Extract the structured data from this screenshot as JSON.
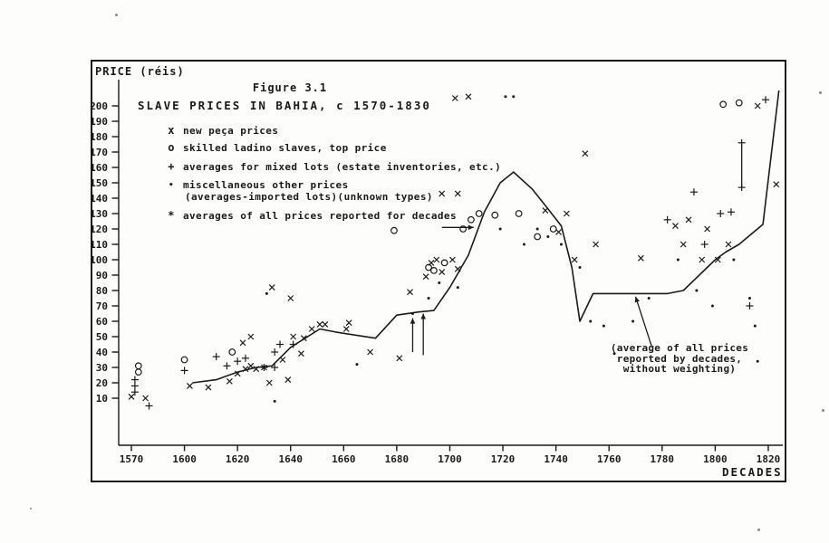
{
  "figure": {
    "number": "Figure 3.1",
    "title": "SLAVE PRICES IN BAHIA, c 1570-1830",
    "y_axis_label": "PRICE (réis)",
    "x_axis_label": "DECADES"
  },
  "legend": {
    "items": [
      {
        "glyph": "x",
        "label": "new peça prices"
      },
      {
        "glyph": "o",
        "label": "skilled ladino slaves, top price"
      },
      {
        "glyph": "+",
        "label": "averages for mixed lots (estate inventories, etc.)"
      },
      {
        "glyph": "•",
        "label": "miscellaneous other prices",
        "label2": "(averages-imported lots)(unknown types)"
      },
      {
        "glyph": "*",
        "label": "averages of all prices reported for decades"
      }
    ]
  },
  "annotation": {
    "line1": "(average of all prices",
    "line2": "reported by decades,",
    "line3": "without weighting)"
  },
  "chart_data": {
    "type": "scatter",
    "title": "SLAVE PRICES IN BAHIA, c 1570-1830",
    "xlabel": "DECADES",
    "ylabel": "PRICE (réis)",
    "xlim": [
      1565,
      1830
    ],
    "ylim": [
      0,
      215
    ],
    "x_ticks": [
      1570,
      1600,
      1620,
      1640,
      1660,
      1680,
      1700,
      1720,
      1740,
      1760,
      1780,
      1800,
      1820
    ],
    "y_ticks": [
      10,
      20,
      30,
      40,
      50,
      60,
      70,
      80,
      90,
      100,
      110,
      120,
      130,
      140,
      150,
      160,
      170,
      180,
      190,
      200
    ],
    "axis_note": "x axis compressed: 1570-1600 spans a single tick interval",
    "series": [
      {
        "id": "new-peca-prices",
        "name": "new peça prices",
        "marker": "x",
        "points": [
          [
            1570,
            11
          ],
          [
            1578,
            10
          ],
          [
            1602,
            18
          ],
          [
            1609,
            17
          ],
          [
            1617,
            21
          ],
          [
            1620,
            26
          ],
          [
            1622,
            46
          ],
          [
            1623,
            29
          ],
          [
            1625,
            31
          ],
          [
            1625,
            50
          ],
          [
            1627,
            29
          ],
          [
            1630,
            30
          ],
          [
            1632,
            20
          ],
          [
            1633,
            82
          ],
          [
            1637,
            35
          ],
          [
            1639,
            22
          ],
          [
            1640,
            75
          ],
          [
            1641,
            50
          ],
          [
            1644,
            39
          ],
          [
            1645,
            49
          ],
          [
            1648,
            55
          ],
          [
            1651,
            58
          ],
          [
            1653,
            58
          ],
          [
            1661,
            55
          ],
          [
            1662,
            59
          ],
          [
            1670,
            40
          ],
          [
            1681,
            36
          ],
          [
            1685,
            79
          ],
          [
            1691,
            89
          ],
          [
            1693,
            98
          ],
          [
            1695,
            100
          ],
          [
            1697,
            92
          ],
          [
            1697,
            143
          ],
          [
            1701,
            100
          ],
          [
            1702,
            205
          ],
          [
            1703,
            94
          ],
          [
            1703,
            143
          ],
          [
            1707,
            206
          ],
          [
            1736,
            132
          ],
          [
            1741,
            118
          ],
          [
            1744,
            130
          ],
          [
            1747,
            100
          ],
          [
            1751,
            169
          ],
          [
            1755,
            110
          ],
          [
            1772,
            101
          ],
          [
            1785,
            122
          ],
          [
            1788,
            110
          ],
          [
            1790,
            126
          ],
          [
            1795,
            100
          ],
          [
            1797,
            120
          ],
          [
            1801,
            100
          ],
          [
            1805,
            110
          ],
          [
            1816,
            200
          ],
          [
            1823,
            149
          ]
        ]
      },
      {
        "id": "ladino-top-price",
        "name": "skilled ladino slaves, top price",
        "marker": "o",
        "points": [
          [
            1574,
            31
          ],
          [
            1574,
            27
          ],
          [
            1600,
            35
          ],
          [
            1618,
            40
          ],
          [
            1679,
            119
          ],
          [
            1692,
            95
          ],
          [
            1694,
            93
          ],
          [
            1698,
            98
          ],
          [
            1705,
            120
          ],
          [
            1708,
            126
          ],
          [
            1711,
            130
          ],
          [
            1717,
            129
          ],
          [
            1726,
            130
          ],
          [
            1733,
            115
          ],
          [
            1739,
            120
          ],
          [
            1803,
            201
          ],
          [
            1809,
            202
          ]
        ]
      },
      {
        "id": "mixed-lot-averages",
        "name": "averages for mixed lots (estate inventories, etc.)",
        "marker": "plus",
        "points": [
          [
            1572,
            22
          ],
          [
            1572,
            18
          ],
          [
            1572,
            14
          ],
          [
            1580,
            5
          ],
          [
            1600,
            28
          ],
          [
            1612,
            37
          ],
          [
            1616,
            31
          ],
          [
            1620,
            34
          ],
          [
            1623,
            36
          ],
          [
            1630,
            30
          ],
          [
            1634,
            30
          ],
          [
            1634,
            40
          ],
          [
            1636,
            45
          ],
          [
            1641,
            45
          ],
          [
            1782,
            126
          ],
          [
            1792,
            144
          ],
          [
            1796,
            110
          ],
          [
            1802,
            130
          ],
          [
            1806,
            131
          ],
          [
            1810,
            147
          ],
          [
            1810,
            176
          ],
          [
            1813,
            70
          ],
          [
            1819,
            204
          ]
        ]
      },
      {
        "id": "misc-prices",
        "name": "miscellaneous other prices (averages-imported lots)(unknown types)",
        "marker": "dot",
        "points": [
          [
            1631,
            78
          ],
          [
            1634,
            8
          ],
          [
            1665,
            32
          ],
          [
            1686,
            65
          ],
          [
            1692,
            75
          ],
          [
            1696,
            85
          ],
          [
            1703,
            82
          ],
          [
            1719,
            120
          ],
          [
            1721,
            206
          ],
          [
            1724,
            206
          ],
          [
            1728,
            110
          ],
          [
            1733,
            120
          ],
          [
            1737,
            115
          ],
          [
            1742,
            110
          ],
          [
            1749,
            95
          ],
          [
            1753,
            60
          ],
          [
            1758,
            57
          ],
          [
            1762,
            39
          ],
          [
            1769,
            60
          ],
          [
            1775,
            75
          ],
          [
            1786,
            100
          ],
          [
            1793,
            80
          ],
          [
            1799,
            70
          ],
          [
            1807,
            100
          ],
          [
            1813,
            75
          ],
          [
            1815,
            57
          ],
          [
            1816,
            34
          ]
        ]
      },
      {
        "id": "decade-averages",
        "name": "averages of all prices reported for decades",
        "marker": "line",
        "points": [
          [
            1603,
            20
          ],
          [
            1612,
            22
          ],
          [
            1620,
            27
          ],
          [
            1627,
            30
          ],
          [
            1633,
            31
          ],
          [
            1640,
            43
          ],
          [
            1651,
            55
          ],
          [
            1657,
            53
          ],
          [
            1672,
            49
          ],
          [
            1680,
            64
          ],
          [
            1688,
            66
          ],
          [
            1694,
            67
          ],
          [
            1700,
            82
          ],
          [
            1707,
            103
          ],
          [
            1713,
            131
          ],
          [
            1719,
            150
          ],
          [
            1724,
            157
          ],
          [
            1731,
            146
          ],
          [
            1737,
            133
          ],
          [
            1742,
            122
          ],
          [
            1746,
            95
          ],
          [
            1749,
            60
          ],
          [
            1754,
            78
          ],
          [
            1782,
            78
          ],
          [
            1788,
            80
          ],
          [
            1800,
            100
          ],
          [
            1804,
            105
          ],
          [
            1809,
            110
          ],
          [
            1818,
            123
          ],
          [
            1824,
            210
          ]
        ]
      }
    ],
    "range_segments": [
      {
        "from": [
          1686,
          40
        ],
        "to": [
          1686,
          62
        ],
        "arrow": true
      },
      {
        "from": [
          1690,
          38
        ],
        "to": [
          1690,
          65
        ],
        "arrow": true
      },
      {
        "from": [
          1697,
          121
        ],
        "to": [
          1709,
          121
        ],
        "arrow": true
      },
      {
        "from": [
          1810,
          147
        ],
        "to": [
          1810,
          175
        ],
        "arrow": false
      }
    ],
    "callout_arrow": {
      "from": [
        1776,
        44
      ],
      "to": [
        1770,
        76
      ]
    },
    "ink_color": "#1b1b1b"
  }
}
